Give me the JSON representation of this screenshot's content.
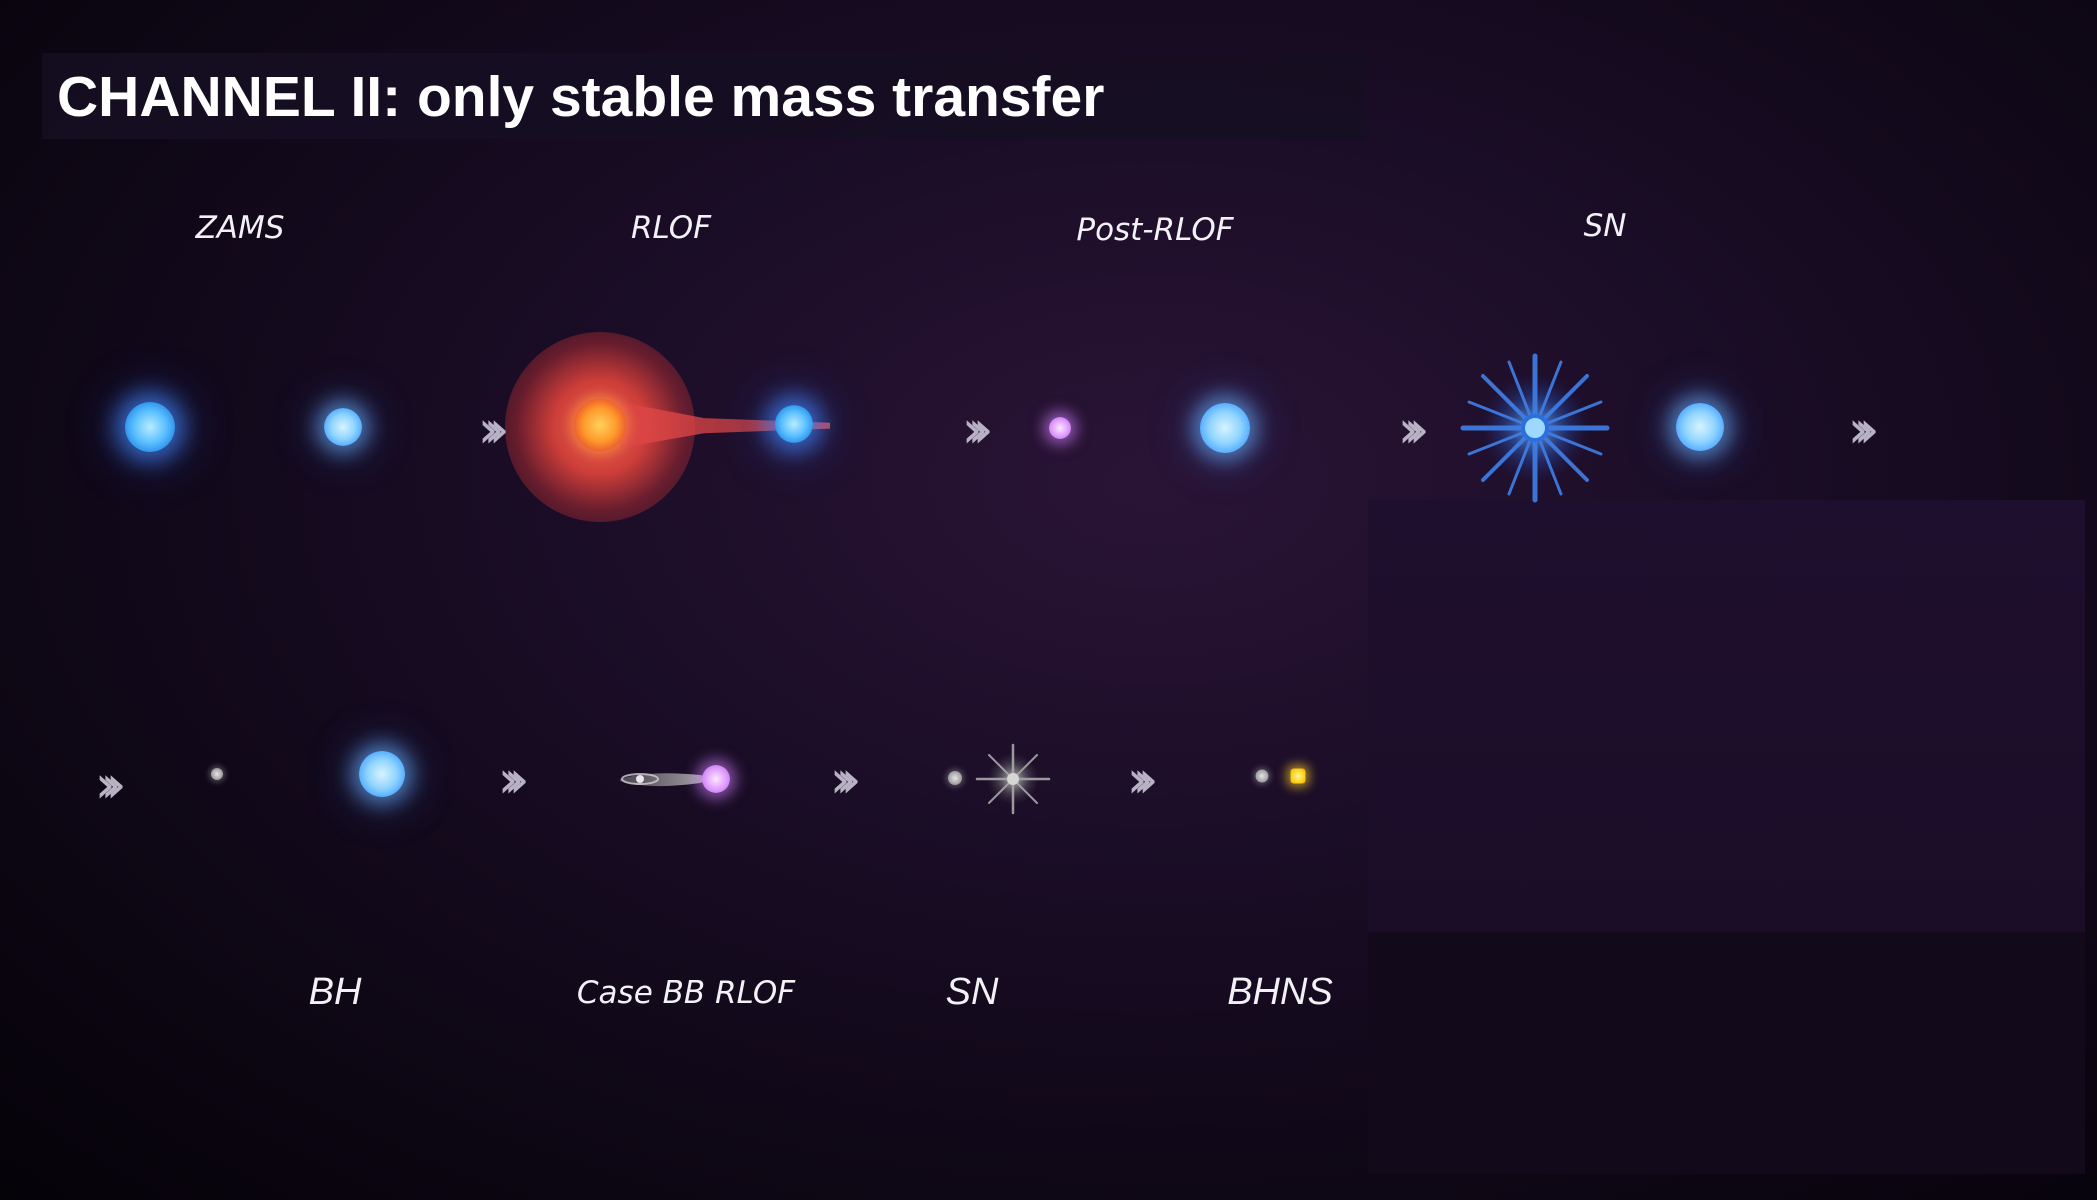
{
  "title": "CHANNEL II: only stable mass transfer",
  "top_row": {
    "labels": [
      "ZAMS",
      "RLOF",
      "Post-RLOF",
      "SN"
    ]
  },
  "bottom_row": {
    "labels": [
      "BH",
      "Case BB RLOF",
      "SN",
      "BHNS"
    ]
  },
  "icons": {
    "transition_arrow": "triple-chevron-right-icon",
    "arrow_glyph": "»›"
  },
  "colors": {
    "background": "#1b0d27",
    "title_text": "#ffffff",
    "label_text": "#f2f2f6",
    "blue_star": "#8fd4ff",
    "red_giant": "#e8502a",
    "stripped_star": "#e2a0ff",
    "compact_object": "#9a9a9a",
    "neutron_star": "#ffd21a",
    "arrow": "#b9b2c4"
  }
}
